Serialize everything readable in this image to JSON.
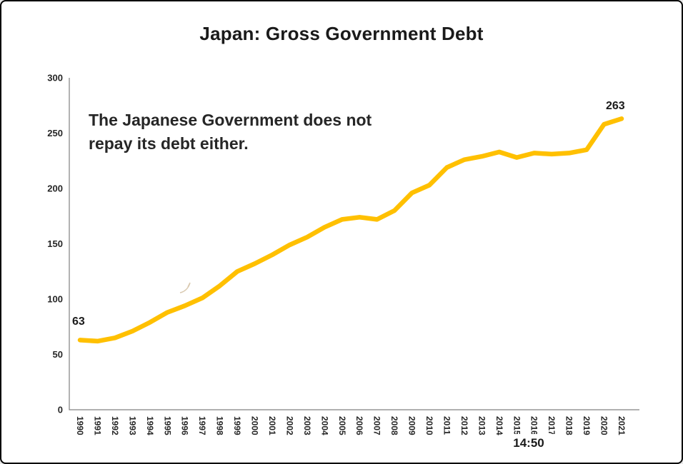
{
  "title": "Japan: Gross Government Debt",
  "annotation": {
    "line1": "The Japanese Government does not",
    "line2": "repay its debt either."
  },
  "point_labels": {
    "first": "63",
    "last": "263"
  },
  "overlay": {
    "timestamp": "14:50"
  },
  "chart_data": {
    "type": "line",
    "title": "Japan: Gross Government Debt",
    "xlabel": "",
    "ylabel": "",
    "x": [
      1990,
      1991,
      1992,
      1993,
      1994,
      1995,
      1996,
      1997,
      1998,
      1999,
      2000,
      2001,
      2002,
      2003,
      2004,
      2005,
      2006,
      2007,
      2008,
      2009,
      2010,
      2011,
      2012,
      2013,
      2014,
      2015,
      2016,
      2017,
      2018,
      2019,
      2020,
      2021
    ],
    "values": [
      63,
      62,
      65,
      71,
      79,
      88,
      94,
      101,
      112,
      125,
      132,
      140,
      149,
      156,
      165,
      172,
      174,
      172,
      180,
      196,
      203,
      219,
      226,
      229,
      233,
      228,
      232,
      231,
      232,
      235,
      258,
      263
    ],
    "ylim": [
      0,
      300
    ],
    "yticks": [
      0,
      50,
      100,
      150,
      200,
      250,
      300
    ],
    "grid": false,
    "legend": false,
    "line_color": "#FFC000",
    "axis_color": "#808080",
    "annotations": [
      "63 (1990)",
      "263 (2021)"
    ]
  }
}
